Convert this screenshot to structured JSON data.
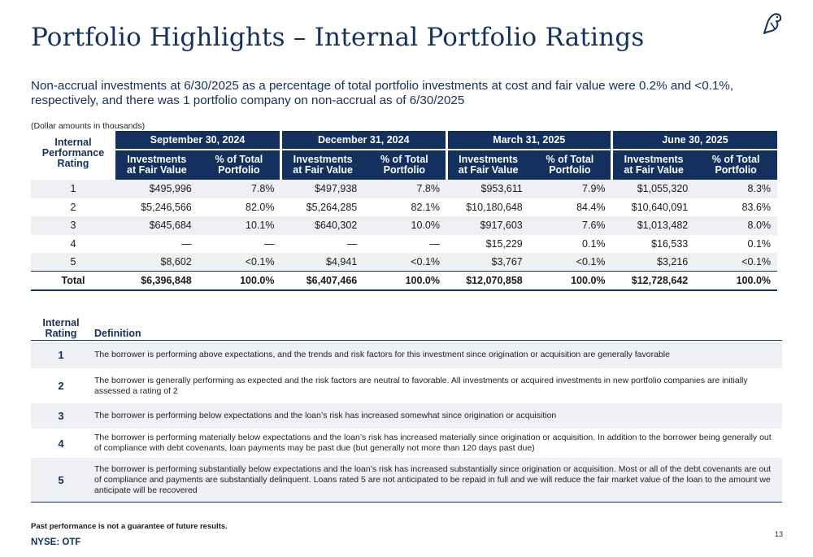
{
  "page": {
    "title": "Portfolio Highlights – Internal Portfolio Ratings",
    "lead_text": "Non-accrual investments at 6/30/2025 as a percentage of total portfolio investments at cost and fair value were 0.2% and <0.1%, respectively, and there was 1 portfolio company on non-accrual as of 6/30/2025",
    "dollar_note": "(Dollar amounts in thousands)",
    "logo_icon": "bird-logo-icon",
    "accent_color": "#13305e"
  },
  "ratings_table": {
    "rating_header": "Internal Performance Rating",
    "periods": [
      "September 30, 2024",
      "December 31, 2024",
      "March 31, 2025",
      "June 30, 2025"
    ],
    "sub_headers": {
      "value": "Investments at Fair Value",
      "pct": "% of Total Portfolio"
    },
    "rows": [
      {
        "rating": "1",
        "cells": [
          "$495,996",
          "7.8%",
          "$497,938",
          "7.8%",
          "$953,611",
          "7.9%",
          "$1,055,320",
          "8.3%"
        ]
      },
      {
        "rating": "2",
        "cells": [
          "$5,246,566",
          "82.0%",
          "$5,264,285",
          "82.1%",
          "$10,180,648",
          "84.4%",
          "$10,640,091",
          "83.6%"
        ]
      },
      {
        "rating": "3",
        "cells": [
          "$645,684",
          "10.1%",
          "$640,302",
          "10.0%",
          "$917,603",
          "7.6%",
          "$1,013,482",
          "8.0%"
        ]
      },
      {
        "rating": "4",
        "cells": [
          "—",
          "—",
          "—",
          "—",
          "$15,229",
          "0.1%",
          "$16,533",
          "0.1%"
        ]
      },
      {
        "rating": "5",
        "cells": [
          "$8,602",
          "<0.1%",
          "$4,941",
          "<0.1%",
          "$3,767",
          "<0.1%",
          "$3,216",
          "<0.1%"
        ]
      }
    ],
    "total": {
      "rating": "Total",
      "cells": [
        "$6,396,848",
        "100.0%",
        "$6,407,466",
        "100.0%",
        "$12,070,858",
        "100.0%",
        "$12,728,642",
        "100.0%"
      ]
    }
  },
  "definitions": {
    "header_rating": "Internal Rating",
    "header_definition": "Definition",
    "rows": [
      {
        "rating": "1",
        "text": "The borrower is performing above expectations, and the trends and risk factors for this investment since origination or acquisition are generally favorable"
      },
      {
        "rating": "2",
        "text": "The borrower is generally performing as expected and the risk factors are neutral to favorable. All investments or acquired investments in new portfolio companies are initially assessed a rating of 2"
      },
      {
        "rating": "3",
        "text": "The borrower is performing below expectations and the loan’s risk has increased somewhat since origination or acquisition"
      },
      {
        "rating": "4",
        "text": "The borrower is performing materially below expectations and the loan’s risk has increased materially since origination or acquisition. In addition to the borrower being generally out of compliance with debt covenants, loan payments may be past due (but generally not more than 120 days past due)"
      },
      {
        "rating": "5",
        "text": "The borrower is performing substantially below expectations and the loan’s risk has increased substantially since origination or acquisition. Most or all of the debt covenants are out of compliance and payments are substantially delinquent.  Loans rated 5 are not anticipated to be repaid in full and we will reduce the fair market value of the loan to the amount we anticipate will be recovered"
      }
    ]
  },
  "footer": {
    "disclaimer": "Past performance is not a guarantee of future results.",
    "ticker": "NYSE: OTF",
    "page_number": "13"
  }
}
